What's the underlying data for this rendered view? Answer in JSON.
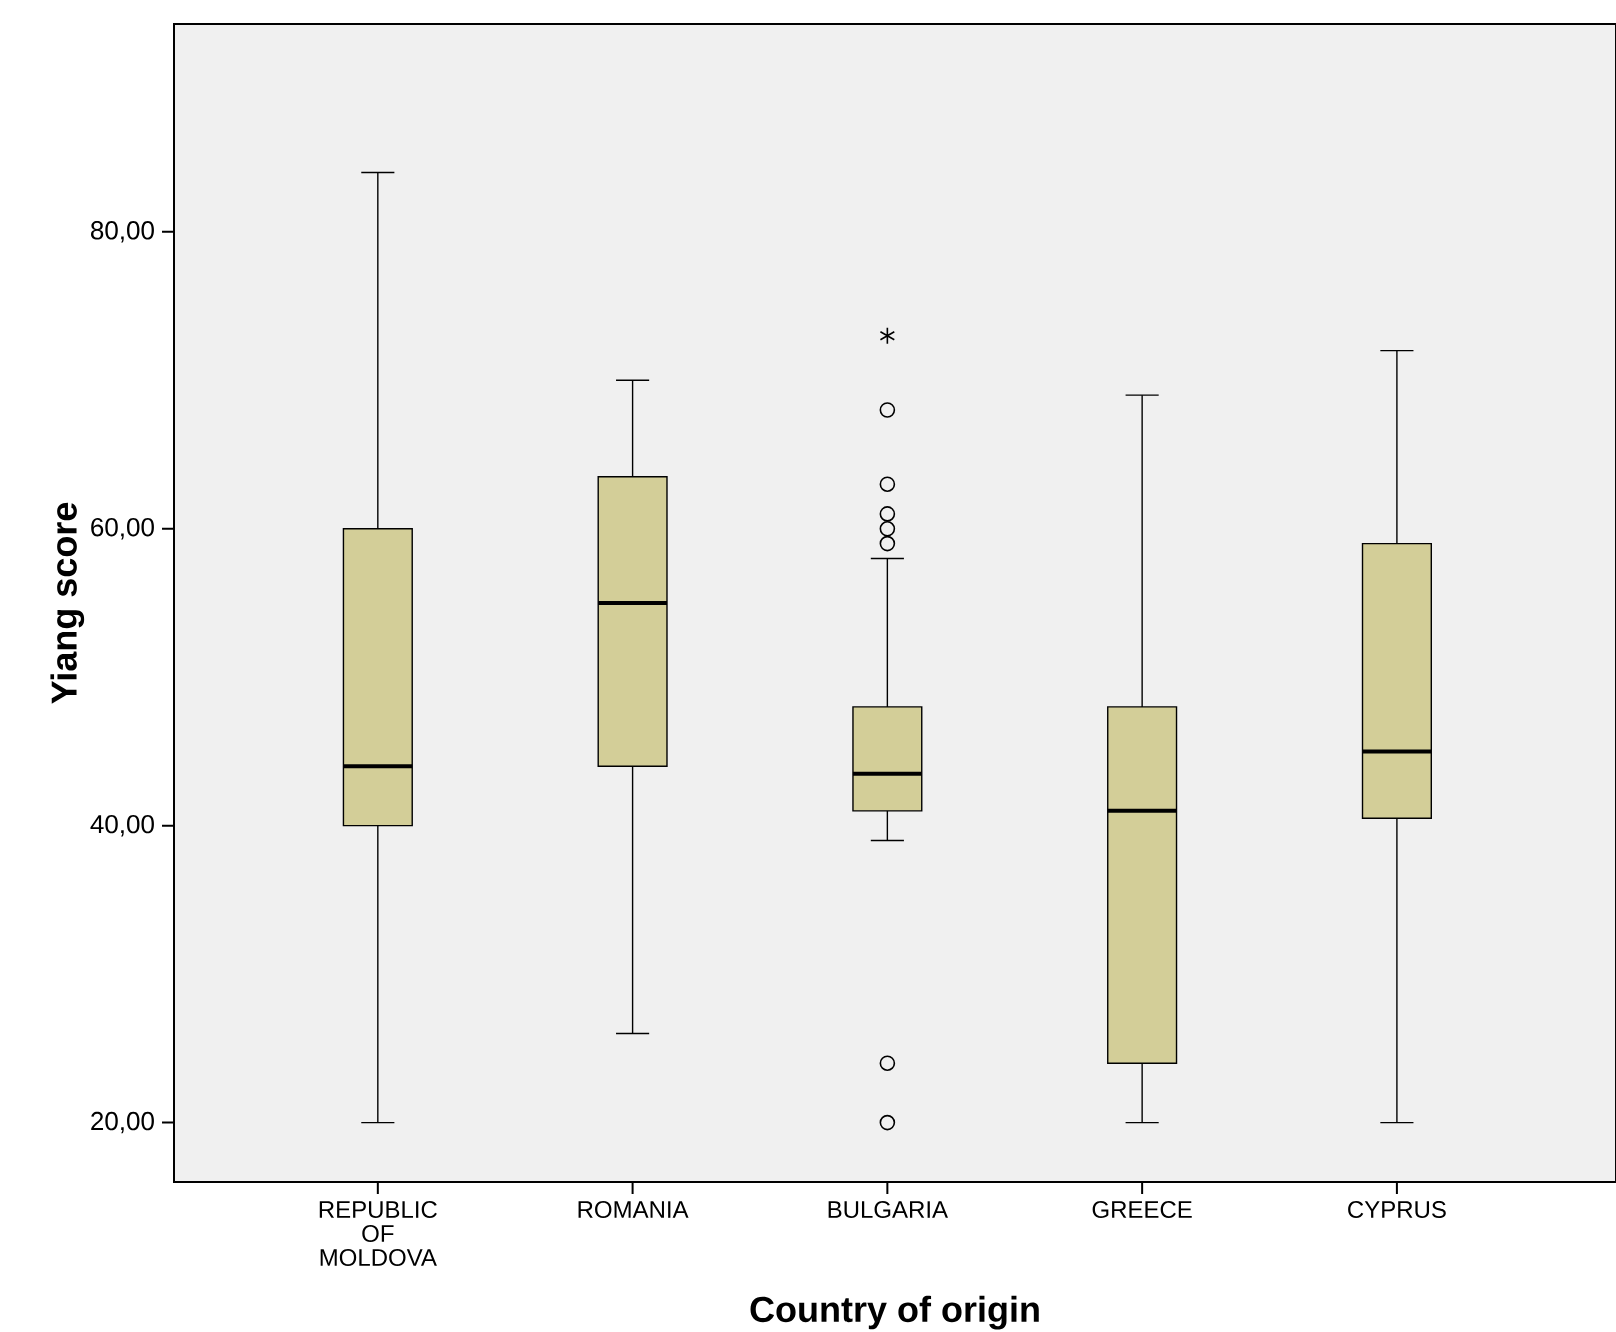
{
  "chart_data": {
    "type": "box",
    "xlabel": "Country of origin",
    "ylabel": "Yiang score",
    "categories": [
      "REPUBLIC OF MOLDOVA",
      "ROMANIA",
      "BULGARIA",
      "GREECE",
      "CYPRUS"
    ],
    "color": "#d3ce98",
    "boxes": [
      {
        "low": 20,
        "q1": 40,
        "median": 44,
        "q3": 60,
        "high": 84
      },
      {
        "low": 26,
        "q1": 44,
        "median": 55,
        "q3": 63.5,
        "high": 70
      },
      {
        "low": 39,
        "q1": 41,
        "median": 43.5,
        "q3": 48,
        "high": 58,
        "outliers": [
          59,
          60,
          61,
          63,
          68,
          73,
          24,
          20
        ]
      },
      {
        "low": 20,
        "q1": 24,
        "median": 41,
        "q3": 48,
        "high": 69
      },
      {
        "low": 20,
        "q1": 40.5,
        "median": 45,
        "q3": 59,
        "high": 72
      }
    ],
    "ylim": [
      16,
      94
    ],
    "yticks": [
      {
        "value": 20,
        "label": "20,00"
      },
      {
        "value": 40,
        "label": "40,00"
      },
      {
        "value": 60,
        "label": "60,00"
      },
      {
        "value": 80,
        "label": "80,00"
      }
    ]
  }
}
